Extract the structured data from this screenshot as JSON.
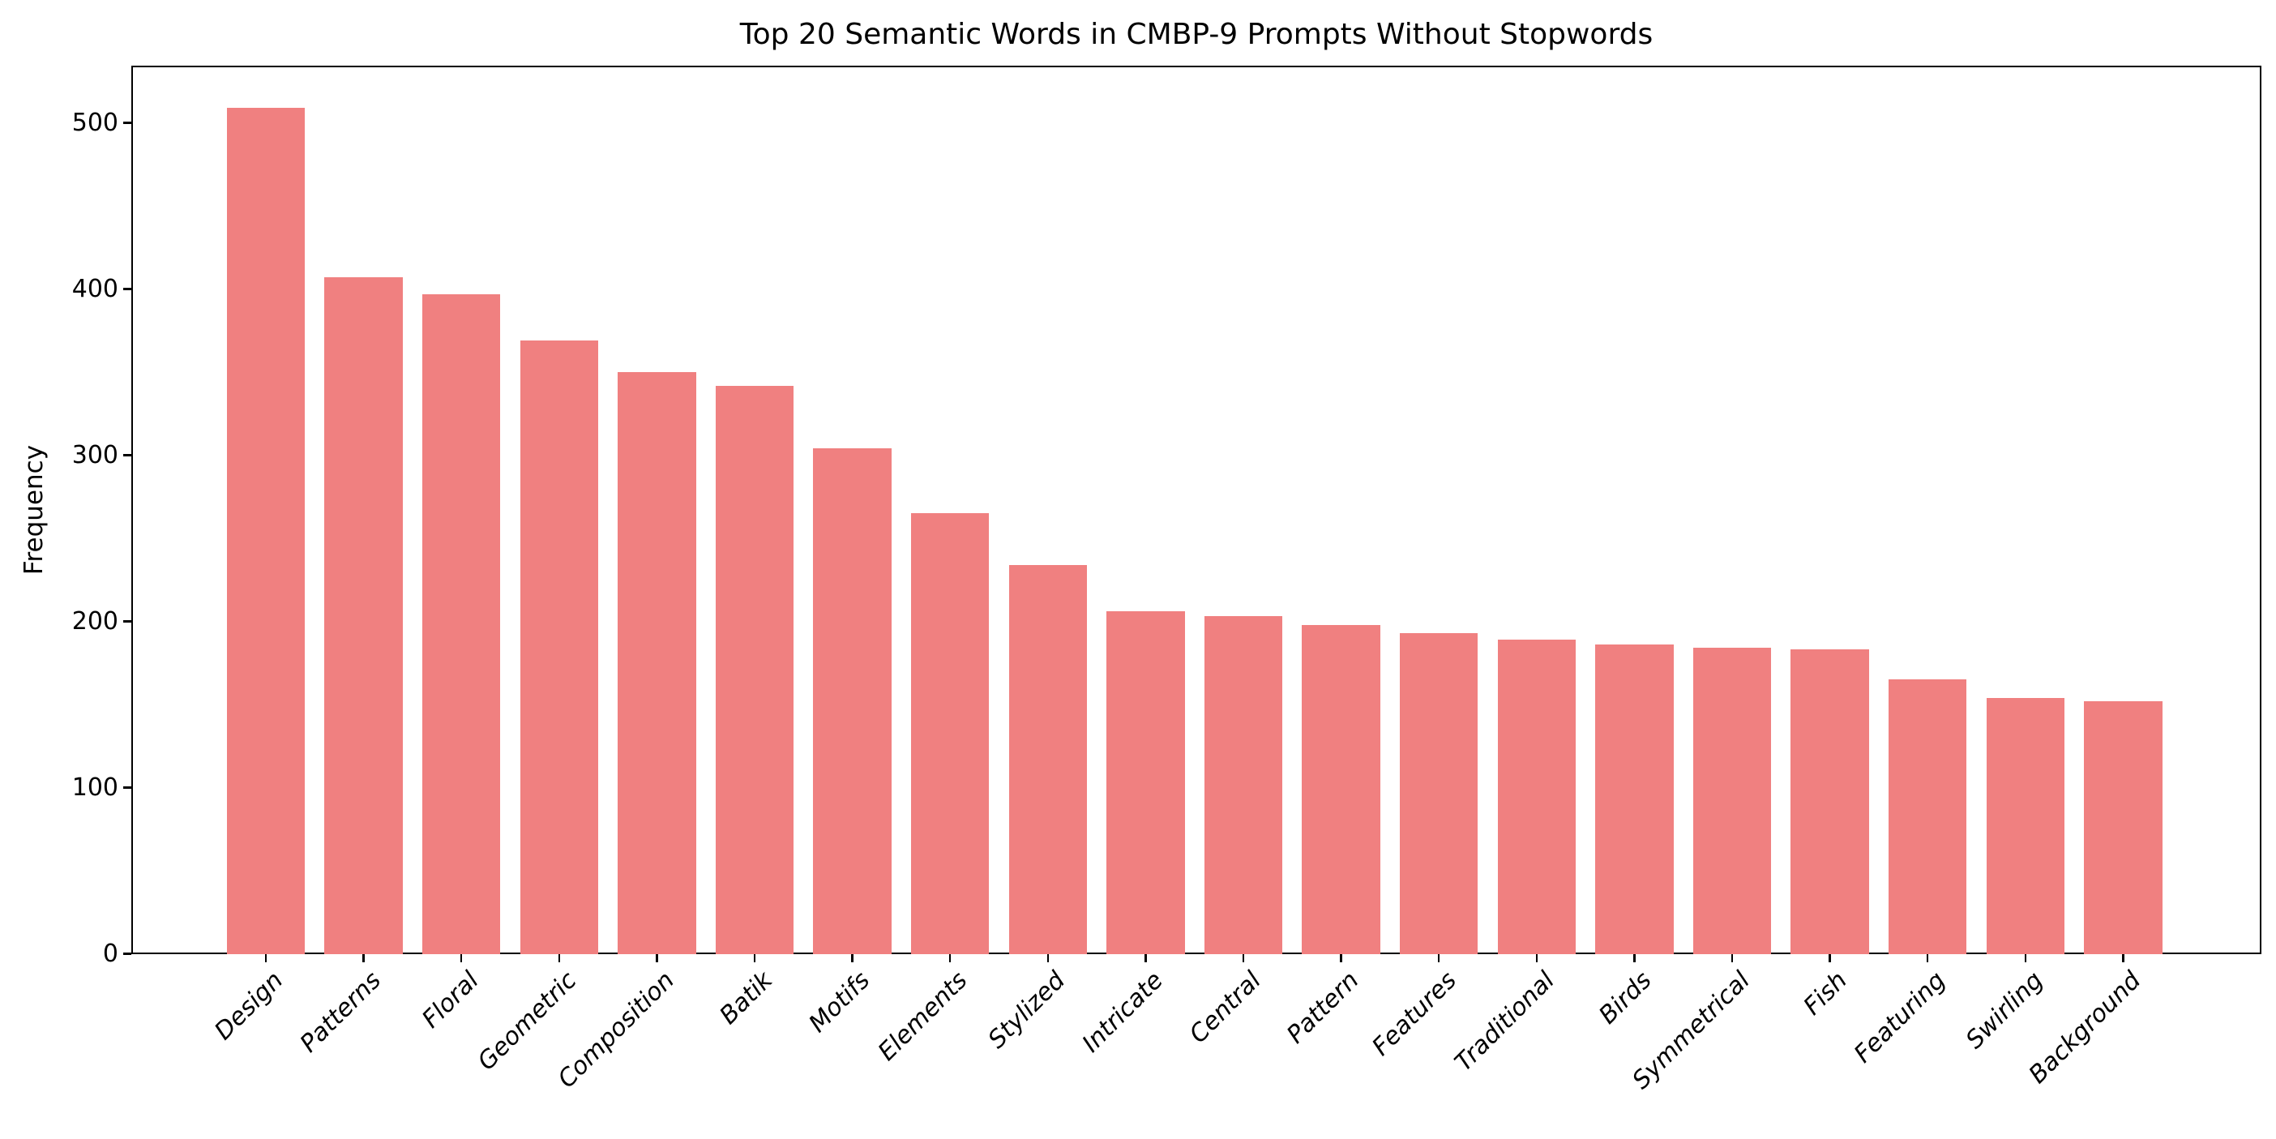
{
  "chart_data": {
    "type": "bar",
    "title": "Top 20 Semantic Words in CMBP-9 Prompts Without Stopwords",
    "xlabel": "",
    "ylabel": "Frequency",
    "categories": [
      "Design",
      "Patterns",
      "Floral",
      "Geometric",
      "Composition",
      "Batik",
      "Motifs",
      "Elements",
      "Stylized",
      "Intricate",
      "Central",
      "Pattern",
      "Features",
      "Traditional",
      "Birds",
      "Symmetrical",
      "Fish",
      "Featuring",
      "Swirling",
      "Background"
    ],
    "values": [
      509,
      407,
      397,
      369,
      350,
      342,
      304,
      265,
      234,
      206,
      203,
      198,
      193,
      189,
      186,
      184,
      183,
      165,
      154,
      152
    ],
    "yticks": [
      0,
      100,
      200,
      300,
      400,
      500
    ],
    "ylim": [
      0,
      535
    ],
    "grid": false,
    "legend_position": "none",
    "bar_color": "#F08080",
    "axis_color": "#000000",
    "background_color": "#ffffff"
  }
}
